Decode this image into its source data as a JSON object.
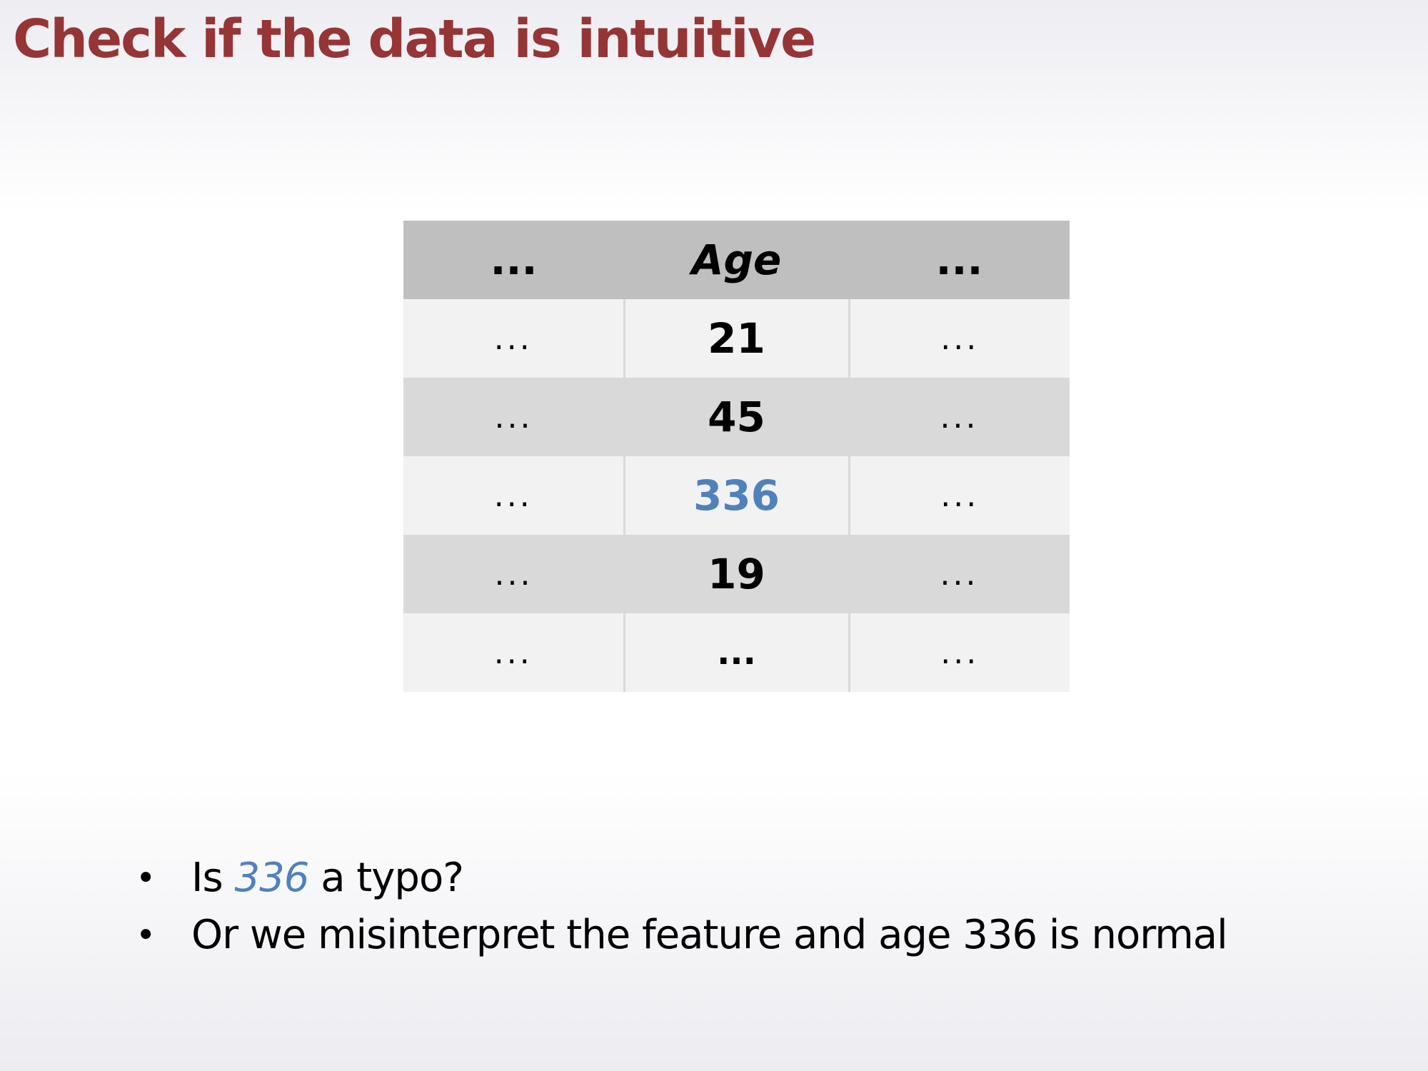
{
  "title": "Check if the data is intuitive",
  "table": {
    "headers": [
      "...",
      "Age",
      "..."
    ],
    "rows": [
      {
        "left": "...",
        "age": "21",
        "right": "..."
      },
      {
        "left": "...",
        "age": "45",
        "right": "..."
      },
      {
        "left": "...",
        "age": "336",
        "right": "..."
      },
      {
        "left": "...",
        "age": "19",
        "right": "..."
      },
      {
        "left": "...",
        "age": "...",
        "right": "..."
      }
    ],
    "outlier_color": "#4f81bd",
    "header_bg": "#bfbfbf"
  },
  "bullets": {
    "marker": "•",
    "item1": {
      "prefix": "Is ",
      "highlight": "336",
      "suffix": " a typo?"
    },
    "item2": "Or we misinterpret the feature and age 336 is normal"
  },
  "colors": {
    "title": "#963536",
    "highlight": "#4f81bd"
  }
}
